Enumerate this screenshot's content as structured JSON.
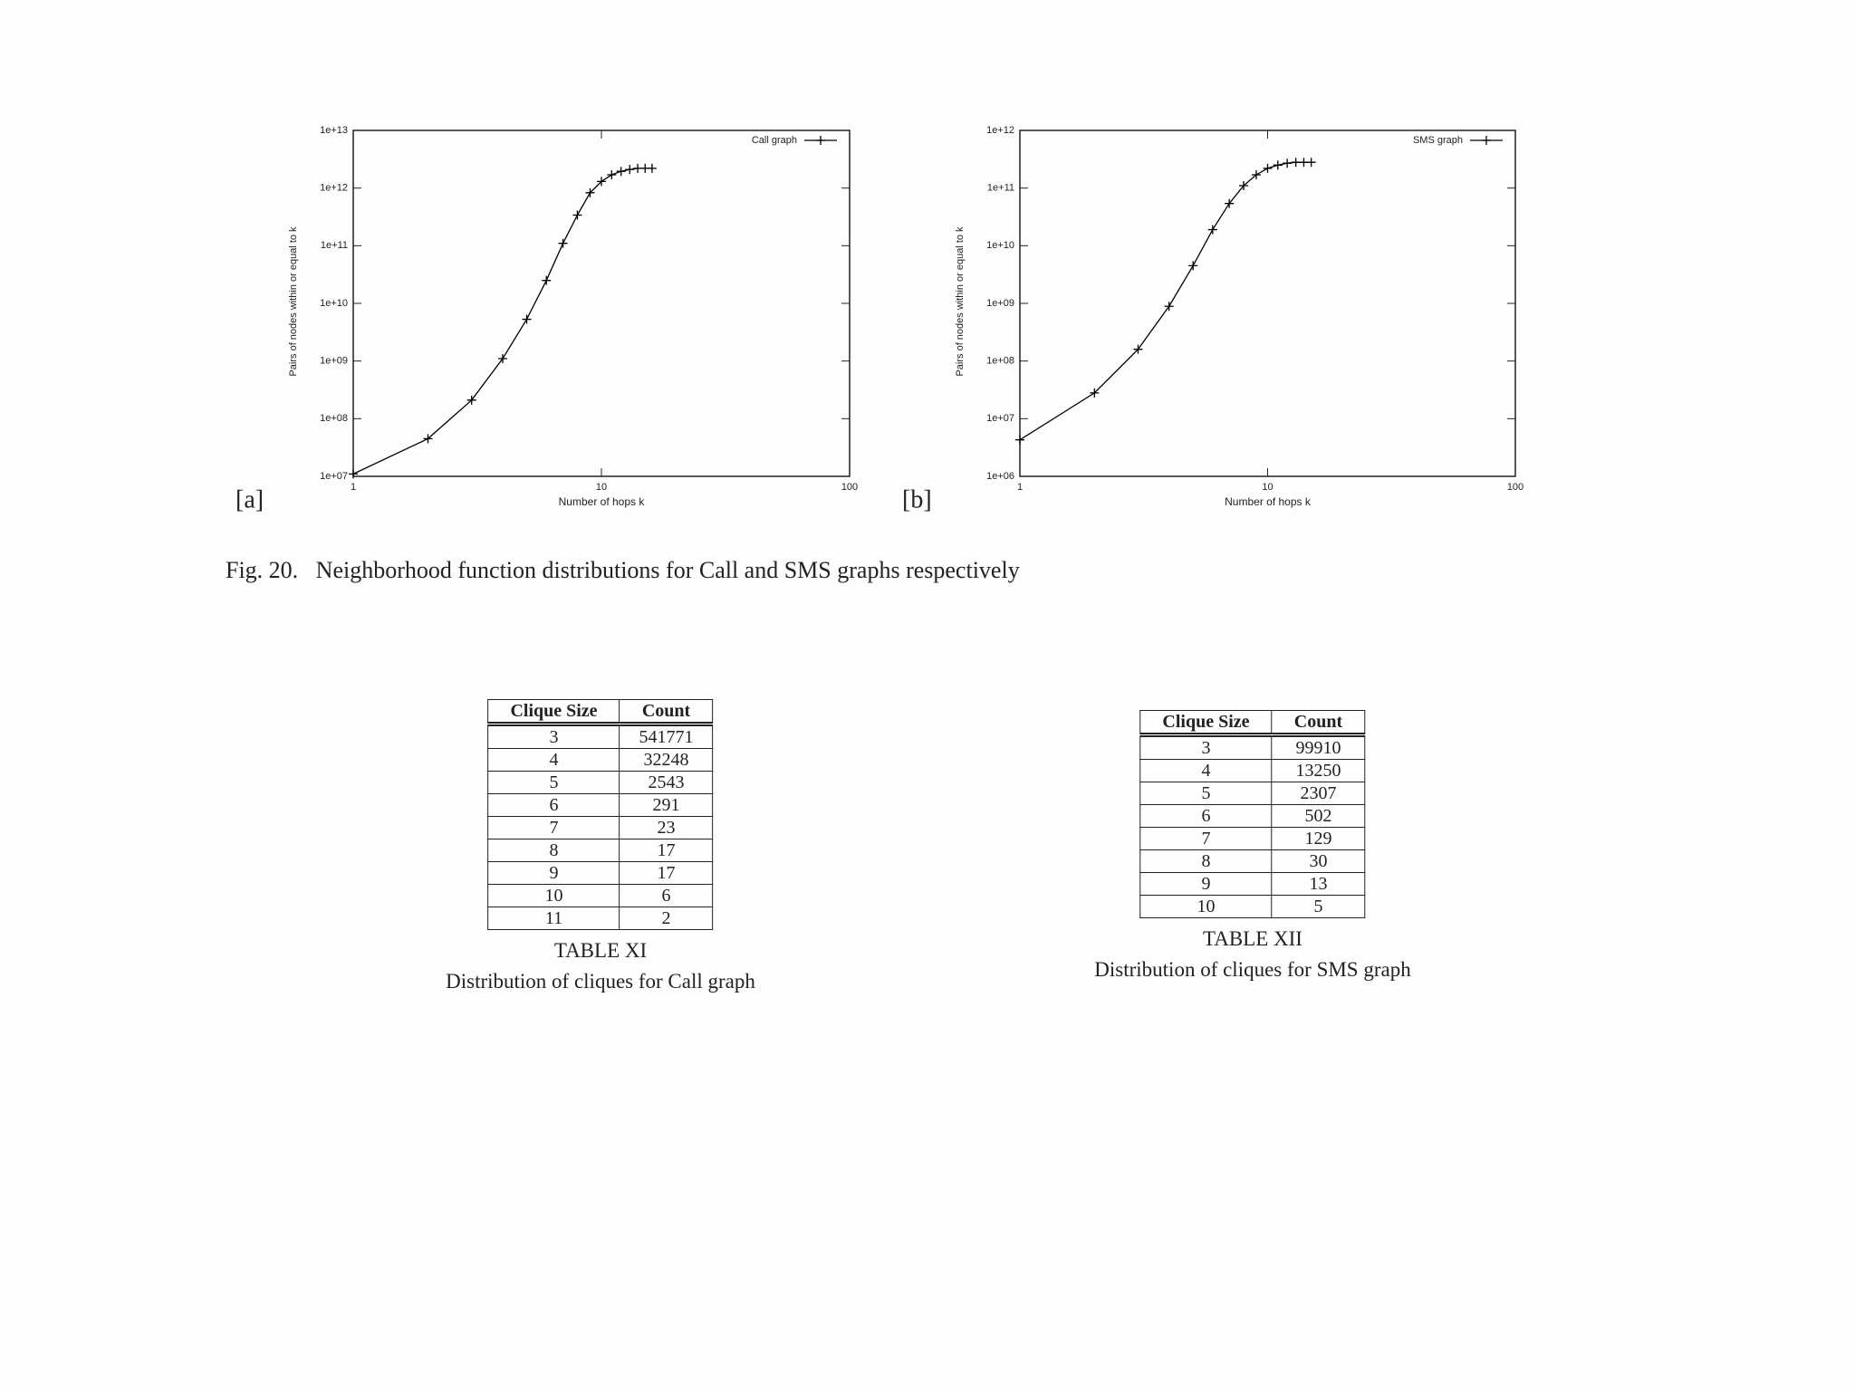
{
  "chart_data": [
    {
      "type": "line",
      "panel_label": "[a]",
      "xlabel": "Number of hops k",
      "ylabel": "Pairs of nodes within or equal to k",
      "xscale": "log",
      "yscale": "log",
      "xlim": [
        1,
        100
      ],
      "ylim": [
        10000000,
        10000000000000
      ],
      "xticks": [
        1,
        10,
        100
      ],
      "yticks": [
        {
          "value": 10000000,
          "label": "1e+07"
        },
        {
          "value": 100000000,
          "label": "1e+08"
        },
        {
          "value": 1000000000,
          "label": "1e+09"
        },
        {
          "value": 10000000000,
          "label": "1e+10"
        },
        {
          "value": 100000000000,
          "label": "1e+11"
        },
        {
          "value": 1000000000000,
          "label": "1e+12"
        },
        {
          "value": 10000000000000,
          "label": "1e+13"
        }
      ],
      "legend": "top-right",
      "x": [
        1,
        2,
        3,
        4,
        5,
        6,
        7,
        8,
        9,
        10,
        11,
        12,
        13,
        14,
        15,
        16
      ],
      "series": [
        {
          "name": "Call graph",
          "color": "#000000",
          "values": [
            11000000,
            45000000,
            210000000,
            1100000000,
            5300000000,
            25000000000,
            110000000000,
            340000000000,
            830000000000,
            1300000000000,
            1700000000000,
            1950000000000,
            2100000000000,
            2200000000000,
            2200000000000,
            2200000000000
          ]
        }
      ]
    },
    {
      "type": "line",
      "panel_label": "[b]",
      "xlabel": "Number of hops k",
      "ylabel": "Pairs of nodes within or equal to k",
      "xscale": "log",
      "yscale": "log",
      "xlim": [
        1,
        100
      ],
      "ylim": [
        1000000,
        1000000000000
      ],
      "xticks": [
        1,
        10,
        100
      ],
      "yticks": [
        {
          "value": 1000000,
          "label": "1e+06"
        },
        {
          "value": 10000000,
          "label": "1e+07"
        },
        {
          "value": 100000000,
          "label": "1e+08"
        },
        {
          "value": 1000000000,
          "label": "1e+09"
        },
        {
          "value": 10000000000,
          "label": "1e+10"
        },
        {
          "value": 100000000000,
          "label": "1e+11"
        },
        {
          "value": 1000000000000,
          "label": "1e+12"
        }
      ],
      "legend": "top-right",
      "x": [
        1,
        2,
        3,
        4,
        5,
        6,
        7,
        8,
        9,
        10,
        11,
        12,
        13,
        14,
        15
      ],
      "series": [
        {
          "name": "SMS graph",
          "color": "#000000",
          "values": [
            4300000,
            28000000,
            160000000,
            890000000,
            4500000000,
            19000000000,
            54000000000,
            110000000000,
            170000000000,
            220000000000,
            250000000000,
            270000000000,
            280000000000,
            280000000000,
            280000000000
          ]
        }
      ]
    }
  ],
  "figure_caption": "Fig. 20.   Neighborhood function distributions for Call and SMS graphs respectively",
  "tables": [
    {
      "header": [
        "Clique Size",
        "Count"
      ],
      "rows": [
        [
          3,
          541771
        ],
        [
          4,
          32248
        ],
        [
          5,
          2543
        ],
        [
          6,
          291
        ],
        [
          7,
          23
        ],
        [
          8,
          17
        ],
        [
          9,
          17
        ],
        [
          10,
          6
        ],
        [
          11,
          2
        ]
      ],
      "title": "TABLE XI",
      "caption": "Distribution of cliques for Call graph"
    },
    {
      "header": [
        "Clique Size",
        "Count"
      ],
      "rows": [
        [
          3,
          99910
        ],
        [
          4,
          13250
        ],
        [
          5,
          2307
        ],
        [
          6,
          502
        ],
        [
          7,
          129
        ],
        [
          8,
          30
        ],
        [
          9,
          13
        ],
        [
          10,
          5
        ]
      ],
      "title": "TABLE XII",
      "caption": "Distribution of cliques for SMS graph"
    }
  ]
}
